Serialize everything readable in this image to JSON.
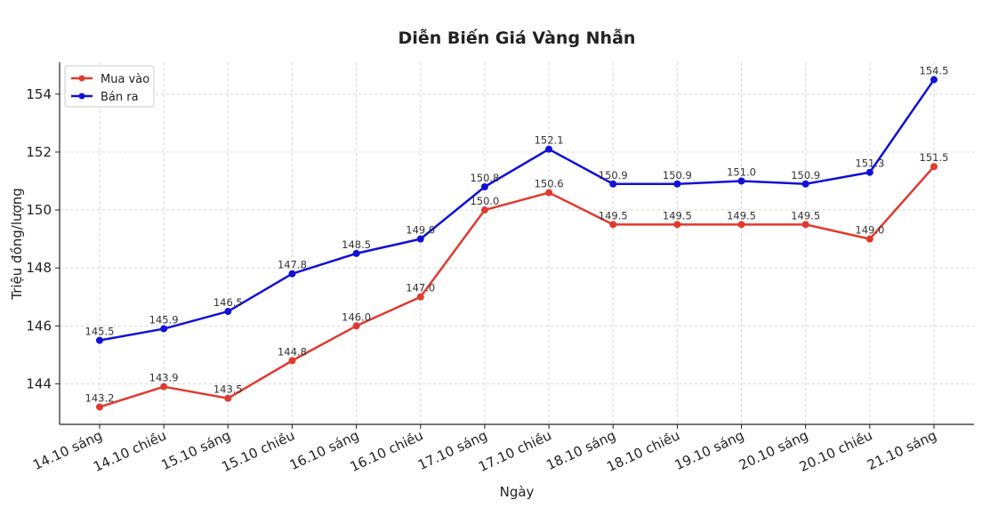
{
  "chart_data": {
    "type": "line",
    "title": "Diễn Biến Giá Vàng Nhẫn",
    "xlabel": "Ngày",
    "ylabel": "Triệu đồng/lượng",
    "categories": [
      "14.10 sáng",
      "14.10 chiều",
      "15.10 sáng",
      "15.10 chiều",
      "16.10 sáng",
      "16.10 chiều",
      "17.10 sáng",
      "17.10 chiều",
      "18.10 sáng",
      "18.10 chiều",
      "19.10 sáng",
      "20.10 sáng",
      "20.10 chiều",
      "21.10 sáng"
    ],
    "series": [
      {
        "name": "Mua vào",
        "color": "#e03a2f",
        "values": [
          143.2,
          143.9,
          143.5,
          144.8,
          146.0,
          147.0,
          150.0,
          150.6,
          149.5,
          149.5,
          149.5,
          149.5,
          149.0,
          151.5
        ]
      },
      {
        "name": "Bán ra",
        "color": "#1010d6",
        "values": [
          145.5,
          145.9,
          146.5,
          147.8,
          148.5,
          149.0,
          150.8,
          152.1,
          150.9,
          150.9,
          151.0,
          150.9,
          151.3,
          154.5
        ]
      }
    ],
    "ylim": [
      142.6,
      155.1
    ],
    "yticks": [
      144,
      146,
      148,
      150,
      152,
      154
    ],
    "grid": true,
    "legend_position": "top-left"
  }
}
